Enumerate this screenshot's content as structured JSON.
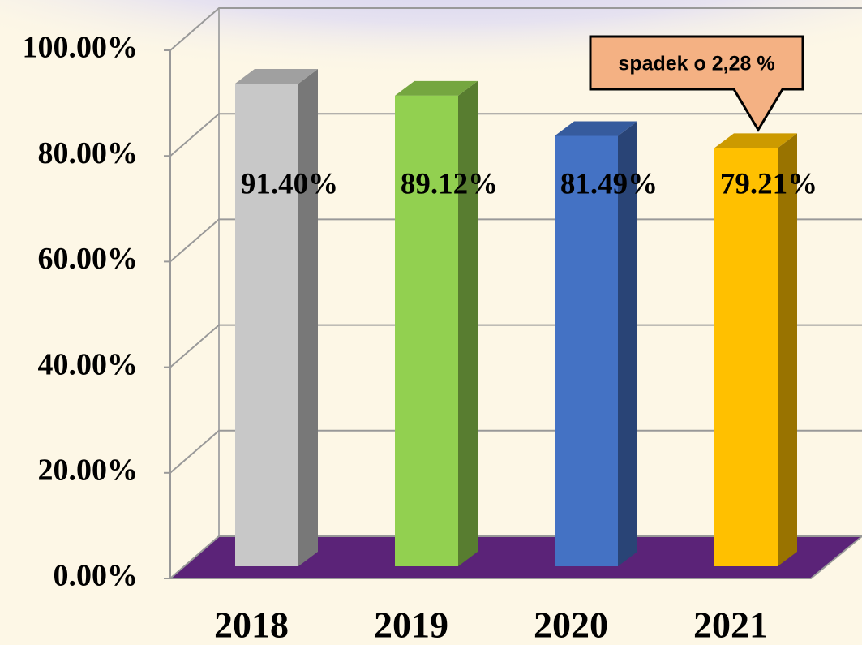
{
  "chart_data": {
    "type": "bar3d",
    "categories": [
      "2018",
      "2019",
      "2020",
      "2021"
    ],
    "values": [
      91.4,
      89.12,
      81.49,
      79.21
    ],
    "value_labels": [
      "91.40%",
      "89.12%",
      "81.49%",
      "79.21%"
    ],
    "colors": [
      "#c8c8c8",
      "#92d050",
      "#4472c4",
      "#ffc000"
    ],
    "ylim": [
      0,
      100
    ],
    "yticks": [
      {
        "value": 0,
        "label": "0.00%"
      },
      {
        "value": 20,
        "label": "20.00%"
      },
      {
        "value": 40,
        "label": "40.00%"
      },
      {
        "value": 60,
        "label": "60.00%"
      },
      {
        "value": 80,
        "label": "80.00%"
      },
      {
        "value": 100,
        "label": "100.00%"
      }
    ],
    "grid": true,
    "floor_color": "#5b2378",
    "annotation": "spadek o 2,28 %"
  }
}
